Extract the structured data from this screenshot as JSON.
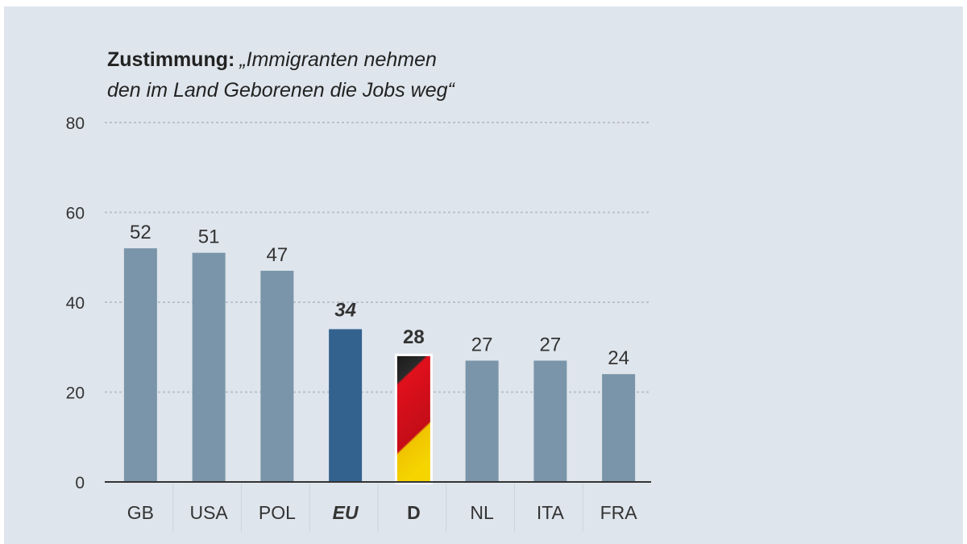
{
  "chart_data": {
    "type": "bar",
    "title_bold": "Zustimmung:",
    "title_line1": "„Immigranten nehmen",
    "title_line2": "den im Land Geborenen die Jobs weg“",
    "categories": [
      "GB",
      "USA",
      "POL",
      "EU",
      "D",
      "NL",
      "ITA",
      "FRA"
    ],
    "values": [
      52,
      51,
      47,
      34,
      28,
      27,
      27,
      24
    ],
    "value_labels": [
      "52",
      "51",
      "47",
      "34",
      "28",
      "27",
      "27",
      "24"
    ],
    "ylim": [
      0,
      80
    ],
    "yticks": [
      "0",
      "20",
      "40",
      "60",
      "80"
    ],
    "grid": true,
    "colors": {
      "default": "#7a95a9",
      "EU": "#33628f",
      "D": "german-flag"
    },
    "highlight": {
      "EU": "bold-italic",
      "D": "bold"
    }
  }
}
